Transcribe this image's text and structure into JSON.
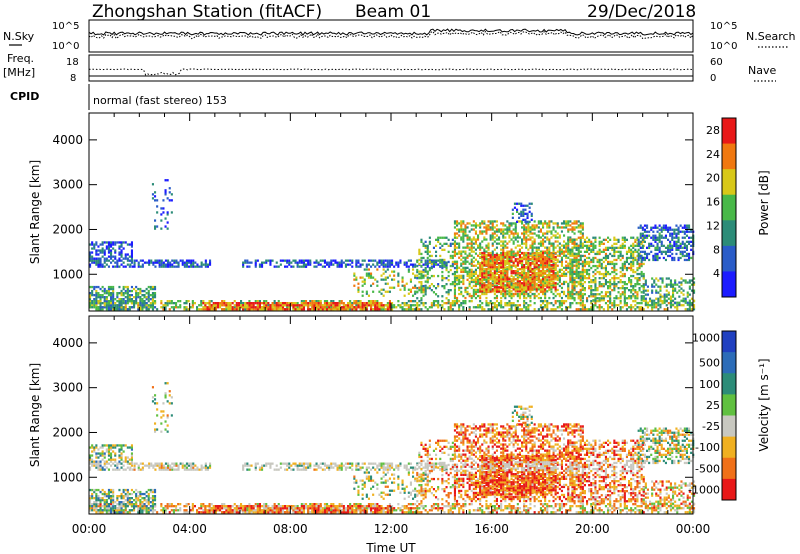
{
  "header": {
    "station": "Zhongshan Station (fitACF)",
    "beam": "Beam 01",
    "date": "29/Dec/2018"
  },
  "strip_labels": {
    "nsky": "N.Sky",
    "nsky_top": "10^5",
    "nsky_bottom": "10^0",
    "freq_a": "Freq.",
    "freq_b": "[MHz]",
    "freq_top": "18",
    "freq_bottom": "8",
    "cpid": "CPID",
    "cpid_text": "normal (fast stereo) 153",
    "nsearch": "N.Search",
    "nsearch_top": "10^5",
    "nsearch_bottom": "10^0",
    "nave": "Nave",
    "nave_top": "60",
    "nave_bottom": "0"
  },
  "chart_data": [
    {
      "type": "heatmap",
      "panel": "power",
      "ylabel": "Slant Range [km]",
      "xlabel": "",
      "x_range_hours": [
        0,
        24
      ],
      "ylim": [
        180,
        4600
      ],
      "yticks": [
        1000,
        2000,
        3000,
        4000
      ],
      "colorbar_label": "Power [dB]",
      "colorbar_ticks": [
        "4",
        "8",
        "12",
        "16",
        "20",
        "24",
        "28"
      ],
      "colorbar_range": [
        0,
        30
      ],
      "colorbar_colors": [
        "#1c1cff",
        "#2a5cc8",
        "#2c8c78",
        "#48b848",
        "#d8c818",
        "#f07810",
        "#e81818"
      ]
    },
    {
      "type": "heatmap",
      "panel": "velocity",
      "ylabel": "Slant Range [km]",
      "xlabel": "Time UT",
      "x_range_hours": [
        0,
        24
      ],
      "ylim": [
        180,
        4600
      ],
      "yticks": [
        1000,
        2000,
        3000,
        4000
      ],
      "xticks": [
        "00:00",
        "04:00",
        "08:00",
        "12:00",
        "16:00",
        "20:00",
        "00:00"
      ],
      "colorbar_label": "Velocity [m s⁻¹]",
      "colorbar_ticks": [
        "1000",
        "500",
        "100",
        "25",
        "-25",
        "-100",
        "-500",
        "-1000"
      ],
      "colorbar_colors": [
        "#2040c0",
        "#2c6cb8",
        "#2c8c78",
        "#60c040",
        "#c8c8c0",
        "#f0b020",
        "#f07018",
        "#e81818"
      ]
    }
  ]
}
